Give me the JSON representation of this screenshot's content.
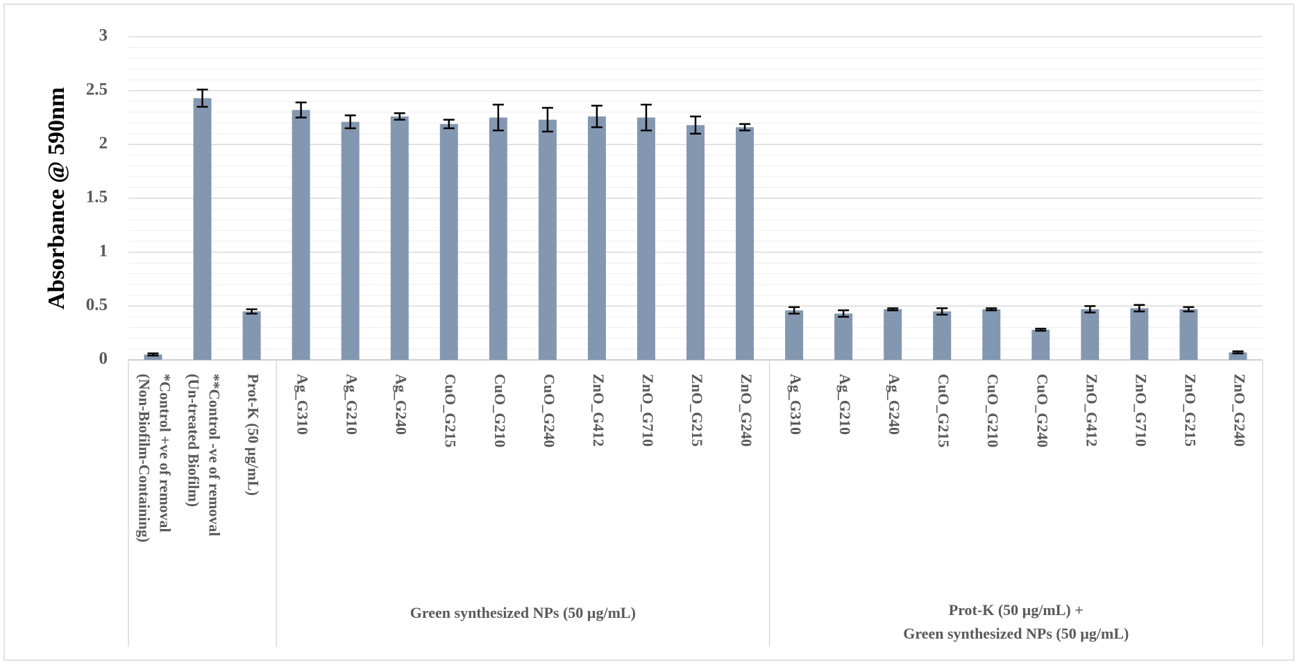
{
  "chart_data": {
    "type": "bar",
    "ylabel": "Absorbance @ 590nm",
    "categories": [
      [
        "*Control +ve of removal",
        "(Non-Biofilm-Containing)"
      ],
      [
        "**Control -ve of removal",
        "(Un-treated Biofilm)"
      ],
      [
        "Prot-K (50 µg/mL)"
      ],
      [
        "Ag_G310"
      ],
      [
        "Ag_G210"
      ],
      [
        "Ag_G240"
      ],
      [
        "CuO_G215"
      ],
      [
        "CuO_G210"
      ],
      [
        "CuO_G240"
      ],
      [
        "ZnO_G412"
      ],
      [
        "ZnO_G710"
      ],
      [
        "ZnO_G215"
      ],
      [
        "ZnO_G240"
      ],
      [
        "Ag_G310"
      ],
      [
        "Ag_G210"
      ],
      [
        "Ag_G240"
      ],
      [
        "CuO_G215"
      ],
      [
        "CuO_G210"
      ],
      [
        "CuO_G240"
      ],
      [
        "ZnO_G412"
      ],
      [
        "ZnO_G710"
      ],
      [
        "ZnO_G215"
      ],
      [
        "ZnO_G240"
      ]
    ],
    "values": [
      0.05,
      2.43,
      0.45,
      2.32,
      2.21,
      2.26,
      2.19,
      2.25,
      2.23,
      2.26,
      2.25,
      2.18,
      2.16,
      0.46,
      0.43,
      0.47,
      0.45,
      0.47,
      0.28,
      0.47,
      0.48,
      0.47,
      0.07
    ],
    "errors": [
      0.01,
      0.08,
      0.02,
      0.07,
      0.06,
      0.03,
      0.04,
      0.12,
      0.11,
      0.1,
      0.12,
      0.08,
      0.03,
      0.03,
      0.03,
      0.01,
      0.03,
      0.01,
      0.01,
      0.03,
      0.03,
      0.02,
      0.01
    ],
    "groups": [
      {
        "label": null,
        "size": 3
      },
      {
        "label": [
          "Green synthesized NPs (50 µg/mL)"
        ],
        "size": 10
      },
      {
        "label": [
          "Prot-K (50 µg/mL)  +",
          "Green synthesized NPs (50 µg/mL)"
        ],
        "size": 10
      }
    ],
    "color": "#8497b0",
    "ylim": [
      0,
      3
    ],
    "yticks": [
      0,
      0.5,
      1,
      1.5,
      2,
      2.5,
      3
    ],
    "grid": true,
    "minor_grid": true
  }
}
